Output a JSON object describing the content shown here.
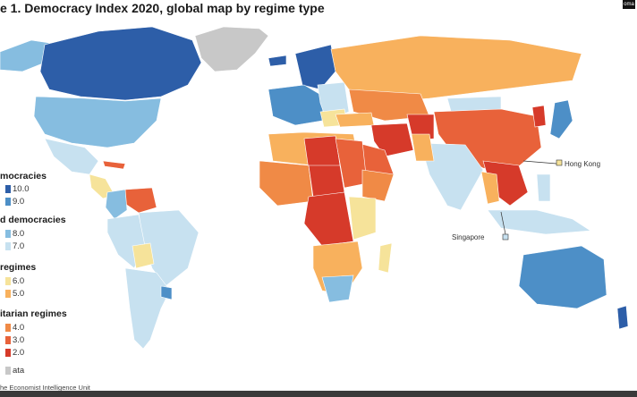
{
  "title": "e 1. Democracy Index 2020, global map by regime type",
  "badge": "oma",
  "source": "he Economist Intelligence Unit",
  "map_data": {
    "type": "choropleth",
    "regions_shown": [
      "North America",
      "South America",
      "Europe",
      "Africa",
      "Asia",
      "Oceania",
      "Greenland",
      "Antarctica-free world"
    ],
    "colors": {
      "full_high": "#2d5ea8",
      "full_low": "#4d8fc7",
      "flawed_high": "#86bde0",
      "flawed_low": "#c7e1f0",
      "hybrid_high": "#f6e39a",
      "hybrid_low": "#f8b15d",
      "auth_high": "#f08a46",
      "auth_mid": "#e8623a",
      "auth_low": "#d63a2a",
      "nodata": "#c8c8c8"
    }
  },
  "legend": {
    "groups": [
      {
        "label": "mocracies",
        "items": [
          "10.0",
          "9.0"
        ],
        "colors": [
          "#2d5ea8",
          "#4d8fc7"
        ]
      },
      {
        "label": "d democracies",
        "items": [
          "8.0",
          "7.0"
        ],
        "colors": [
          "#86bde0",
          "#c7e1f0"
        ]
      },
      {
        "label": "regimes",
        "items": [
          "6.0",
          "5.0"
        ],
        "colors": [
          "#f6e39a",
          "#f8b15d"
        ]
      },
      {
        "label": "itarian regimes",
        "items": [
          "4.0",
          "3.0",
          "2.0"
        ],
        "colors": [
          "#f08a46",
          "#e8623a",
          "#d63a2a"
        ]
      }
    ],
    "nodata": "ata",
    "nodata_color": "#c8c8c8"
  },
  "callouts": {
    "hongkong": "Hong Kong",
    "singapore": "Singapore"
  }
}
